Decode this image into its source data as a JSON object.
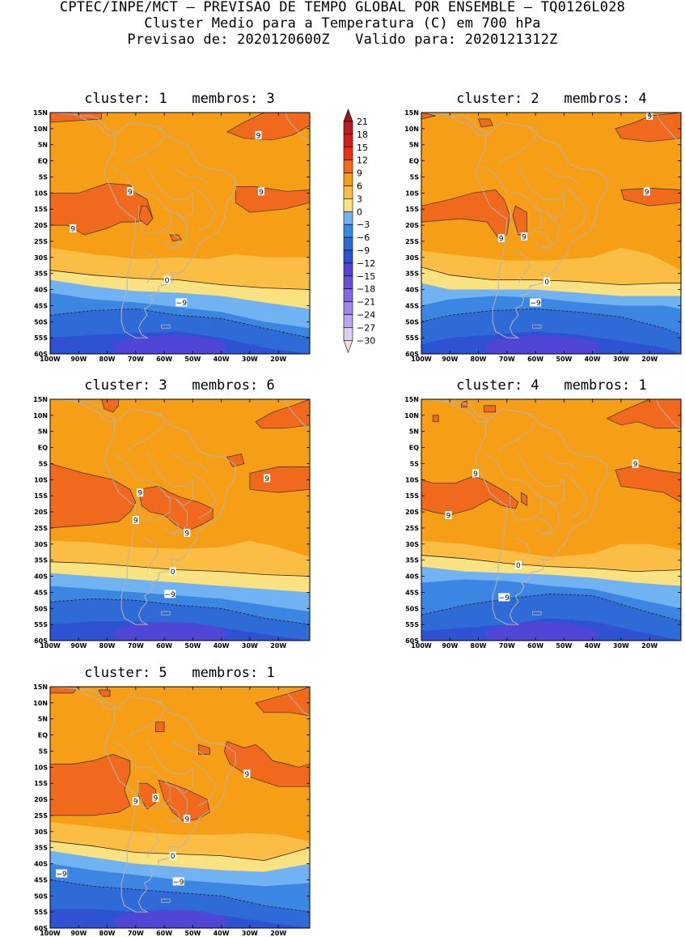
{
  "header": {
    "line1": "CPTEC/INPE/MCT – PREVISAO DE TEMPO GLOBAL POR ENSEMBLE – TQ0126L028",
    "line2": "Cluster Medio para a Temperatura (C) em 700 hPa",
    "line3": "Previsao de: 2020120600Z   Valido para: 2020121312Z"
  },
  "colors": {
    "land_outline": "#b4b4b4",
    "contour_line": "#333333",
    "frame": "#000000"
  },
  "colorbar": {
    "labels": [
      "21",
      "18",
      "15",
      "12",
      "9",
      "6",
      "3",
      "0",
      "−3",
      "−6",
      "−9",
      "−12",
      "−15",
      "−18",
      "−21",
      "−24",
      "−27",
      "−30"
    ],
    "bins": [
      {
        "color": "#f0dcdc",
        "range": "<-30"
      },
      {
        "color": "#d7d0f3",
        "range": "-30..-27"
      },
      {
        "color": "#b8a6ef",
        "range": "-27..-24"
      },
      {
        "color": "#9e86ea",
        "range": "-24..-21"
      },
      {
        "color": "#8367e4",
        "range": "-21..-18"
      },
      {
        "color": "#6a4fd9",
        "range": "-18..-15"
      },
      {
        "color": "#4f45d6",
        "range": "-15..-12"
      },
      {
        "color": "#2f52d3",
        "range": "-12..-9"
      },
      {
        "color": "#2f6bd6",
        "range": "-9..-6"
      },
      {
        "color": "#3b86e3",
        "range": "-6..-3"
      },
      {
        "color": "#70b2f2",
        "range": "-3..0"
      },
      {
        "color": "#fbe280",
        "range": "0..3"
      },
      {
        "color": "#fbbd44",
        "range": "3..6"
      },
      {
        "color": "#f79e17",
        "range": "6..9"
      },
      {
        "color": "#f0691d",
        "range": "9..12"
      },
      {
        "color": "#e8310f",
        "range": "12..15"
      },
      {
        "color": "#d21e17",
        "range": "15..18"
      },
      {
        "color": "#b91d1d",
        "range": "18..21"
      },
      {
        "color": "#9e1515",
        "range": ">21"
      }
    ]
  },
  "axes": {
    "lat_labels": [
      "15N",
      "10N",
      "5N",
      "EQ",
      "5S",
      "10S",
      "15S",
      "20S",
      "25S",
      "30S",
      "35S",
      "40S",
      "45S",
      "50S",
      "55S",
      "60S"
    ],
    "lon_labels": [
      "100W",
      "90W",
      "80W",
      "70W",
      "60W",
      "50W",
      "40W",
      "30W",
      "20W"
    ]
  },
  "panels": [
    {
      "title": "cluster: 1   membros: 3",
      "contour_labels": [
        {
          "text": "9",
          "lon": -72,
          "lat": -9.5
        },
        {
          "text": "9",
          "lon": -92,
          "lat": -21
        },
        {
          "text": "9",
          "lon": -27,
          "lat": 8
        },
        {
          "text": "9",
          "lon": -26,
          "lat": -9.5
        },
        {
          "text": "0",
          "lon": -59,
          "lat": -37
        },
        {
          "text": "−9",
          "lon": -54,
          "lat": -44
        }
      ]
    },
    {
      "title": "cluster: 2   membros: 4",
      "contour_labels": [
        {
          "text": "9",
          "lon": -72,
          "lat": -24
        },
        {
          "text": "9",
          "lon": -64,
          "lat": -23.5
        },
        {
          "text": "9",
          "lon": -21,
          "lat": -9.5
        },
        {
          "text": "9",
          "lon": -20,
          "lat": 14
        },
        {
          "text": "0",
          "lon": -56,
          "lat": -37.5
        },
        {
          "text": "−9",
          "lon": -60,
          "lat": -44
        }
      ]
    },
    {
      "title": "cluster: 3   membros: 6",
      "contour_labels": [
        {
          "text": "9",
          "lon": -68.5,
          "lat": -14
        },
        {
          "text": "9",
          "lon": -70,
          "lat": -22.5
        },
        {
          "text": "9",
          "lon": -52,
          "lat": -26.5
        },
        {
          "text": "9",
          "lon": -24,
          "lat": -9.5
        },
        {
          "text": "0",
          "lon": -57,
          "lat": -38.5
        },
        {
          "text": "−9",
          "lon": -58,
          "lat": -45.5
        }
      ]
    },
    {
      "title": "cluster: 4   membros: 1",
      "contour_labels": [
        {
          "text": "9",
          "lon": -81,
          "lat": -8
        },
        {
          "text": "9",
          "lon": -90.5,
          "lat": -21
        },
        {
          "text": "9",
          "lon": -25,
          "lat": -5
        },
        {
          "text": "0",
          "lon": -66,
          "lat": -36.5
        },
        {
          "text": "−9",
          "lon": -71,
          "lat": -46.5
        }
      ]
    },
    {
      "title": "cluster: 5   membros: 1",
      "contour_labels": [
        {
          "text": "9",
          "lon": -70,
          "lat": -20.5
        },
        {
          "text": "9",
          "lon": -63,
          "lat": -19.5
        },
        {
          "text": "9",
          "lon": -52,
          "lat": -26
        },
        {
          "text": "9",
          "lon": -31,
          "lat": -12
        },
        {
          "text": "0",
          "lon": -57,
          "lat": -37.5
        },
        {
          "text": "−9",
          "lon": -96,
          "lat": -43
        },
        {
          "text": "−9",
          "lon": -55,
          "lat": -45.5
        }
      ]
    }
  ]
}
